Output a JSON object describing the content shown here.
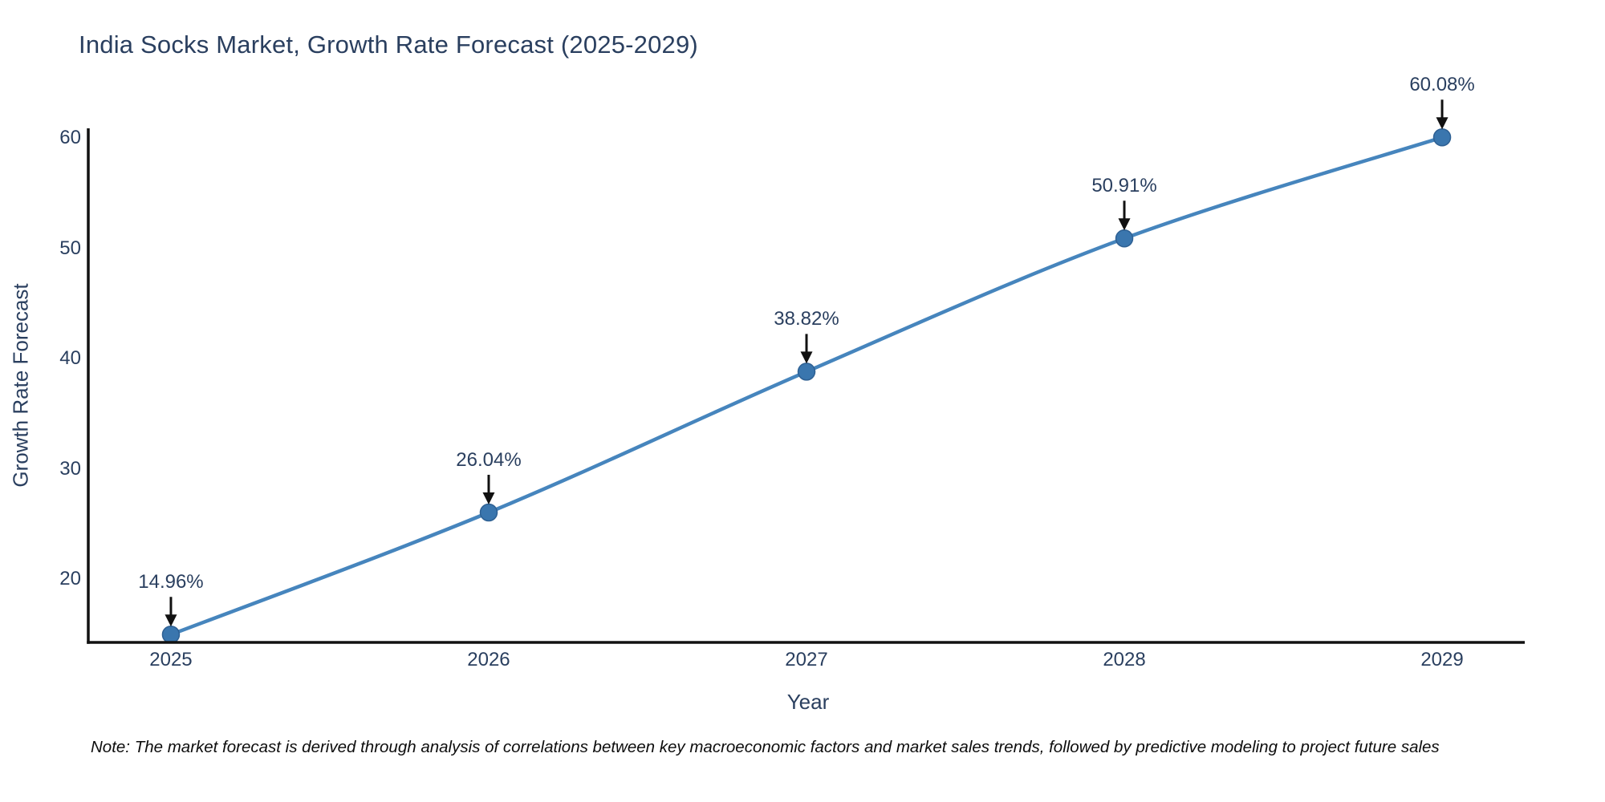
{
  "chart_data": {
    "type": "line",
    "title": "India Socks Market, Growth Rate Forecast (2025-2029)",
    "xlabel": "Year",
    "ylabel": "Growth Rate Forecast",
    "x": [
      2025,
      2026,
      2027,
      2028,
      2029
    ],
    "values": [
      14.96,
      26.04,
      38.82,
      50.91,
      60.08
    ],
    "point_labels": [
      "14.96%",
      "26.04%",
      "38.82%",
      "50.91%",
      "60.08%"
    ],
    "x_tick_labels": [
      "2025",
      "2026",
      "2027",
      "2028",
      "2029"
    ],
    "y_tick_values": [
      20,
      30,
      40,
      50,
      60
    ],
    "y_tick_labels": [
      "20",
      "30",
      "40",
      "50",
      "60"
    ],
    "xlim": [
      2024.74,
      2029.26
    ],
    "ylim": [
      14.25,
      60.9
    ],
    "grid": false,
    "legend": "none",
    "line_shape": "spline",
    "colors": {
      "line": "#4685bd",
      "marker": "#3a76ae",
      "marker_edge": "#2e6093",
      "axis": "#111111",
      "text": "#2a3f5f",
      "arrow": "#111111",
      "background": "#ffffff"
    }
  },
  "note": "Note: The market forecast is derived through analysis of correlations between key macroeconomic factors and market sales trends, followed by predictive modeling to project future sales"
}
